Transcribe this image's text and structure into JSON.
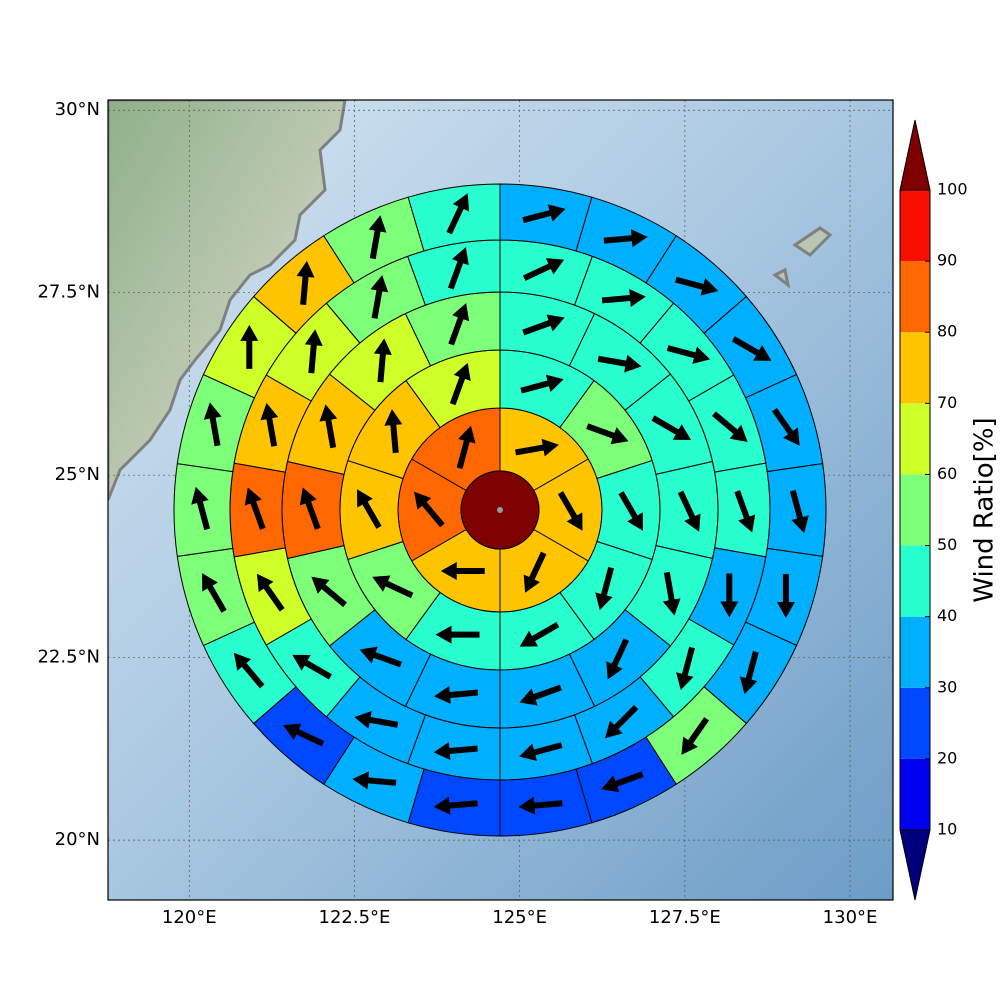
{
  "chart_data": {
    "type": "polar-sectors",
    "xlim": [
      118.77,
      130.65
    ],
    "ylim": [
      19.18,
      30.14
    ],
    "xticks": [
      {
        "value": 120,
        "label": "120°E"
      },
      {
        "value": 122.5,
        "label": "122.5°E"
      },
      {
        "value": 125,
        "label": "125°E"
      },
      {
        "value": 127.5,
        "label": "127.5°E"
      },
      {
        "value": 130,
        "label": "130°E"
      }
    ],
    "yticks": [
      {
        "value": 20,
        "label": "20°N"
      },
      {
        "value": 22.5,
        "label": "22.5°N"
      },
      {
        "value": 25,
        "label": "25°N"
      },
      {
        "value": 27.5,
        "label": "27.5°N"
      },
      {
        "value": 30,
        "label": "30°N"
      }
    ],
    "grid": true,
    "center": {
      "value": 105
    },
    "rings": [
      {
        "values": [
          75,
          75,
          75,
          75,
          85,
          85
        ],
        "directions": [
          80,
          150,
          205,
          270,
          320,
          15
        ]
      },
      {
        "values": [
          45,
          55,
          45,
          45,
          45,
          45,
          55,
          75,
          75,
          65
        ],
        "directions": [
          75,
          110,
          150,
          195,
          240,
          270,
          295,
          330,
          355,
          20
        ]
      },
      {
        "values": [
          45,
          45,
          45,
          45,
          45,
          35,
          35,
          35,
          35,
          55,
          85,
          75,
          65,
          55
        ],
        "directions": [
          70,
          100,
          120,
          155,
          170,
          205,
          250,
          265,
          290,
          310,
          340,
          350,
          5,
          20
        ]
      },
      {
        "values": [
          45,
          45,
          45,
          45,
          45,
          35,
          45,
          35,
          35,
          35,
          35,
          45,
          65,
          85,
          75,
          65,
          55,
          45
        ],
        "directions": [
          65,
          85,
          105,
          130,
          160,
          180,
          195,
          225,
          255,
          265,
          280,
          300,
          325,
          340,
          350,
          5,
          10,
          20
        ]
      },
      {
        "values": [
          35,
          35,
          35,
          35,
          35,
          35,
          35,
          35,
          55,
          25,
          25,
          25,
          35,
          25,
          45,
          55,
          55,
          55,
          65,
          75,
          55,
          45
        ],
        "directions": [
          75,
          85,
          105,
          120,
          145,
          165,
          180,
          195,
          215,
          250,
          265,
          265,
          275,
          295,
          320,
          330,
          345,
          350,
          0,
          5,
          10,
          25
        ]
      }
    ],
    "colorbar": {
      "label": "Wind Ratio[%]",
      "levels": [
        10,
        20,
        30,
        40,
        50,
        60,
        70,
        80,
        90,
        100
      ],
      "colors": [
        "#00007f",
        "#0000f0",
        "#0048ff",
        "#00b0ff",
        "#29ffce",
        "#7dff7a",
        "#ceff29",
        "#ffc400",
        "#ff6800",
        "#f80f00",
        "#7f0000"
      ]
    }
  }
}
